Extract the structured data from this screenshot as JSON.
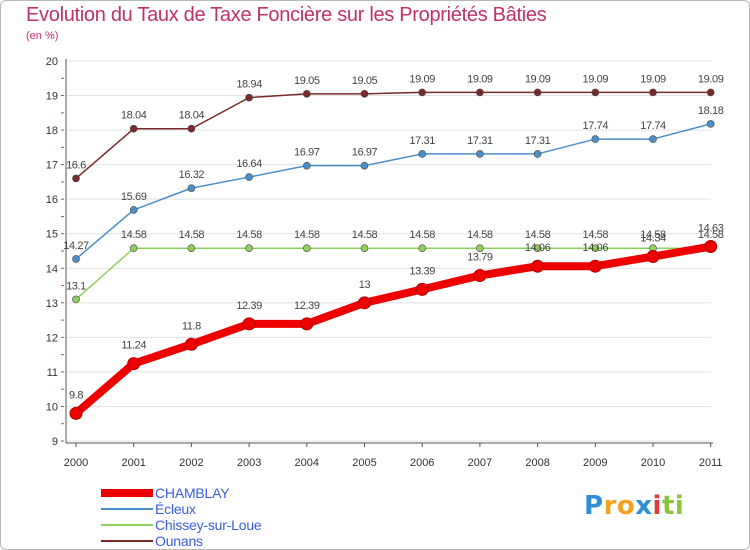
{
  "header": {
    "title": "Evolution du Taux de Taxe Foncière sur les Propriétés Bâties",
    "unit": "(en %)"
  },
  "chart_data": {
    "type": "line",
    "title": "Evolution du Taux de Taxe Foncière sur les Propriétés Bâties",
    "ylabel": "(en %)",
    "xlabel": "",
    "x": [
      "2000",
      "2001",
      "2002",
      "2003",
      "2004",
      "2005",
      "2006",
      "2007",
      "2008",
      "2009",
      "2010",
      "2011"
    ],
    "ylim": [
      9,
      20
    ],
    "yticks": [
      "9",
      "10",
      "11",
      "12",
      "13",
      "14",
      "15",
      "16",
      "17",
      "18",
      "19",
      "20"
    ],
    "series": [
      {
        "name": "Ounans",
        "color": "#7a2a2a",
        "values": [
          16.6,
          18.04,
          18.04,
          18.94,
          19.05,
          19.05,
          19.09,
          19.09,
          19.09,
          19.09,
          19.09,
          19.09
        ],
        "labels": [
          "16.6",
          "18.04",
          "18.04",
          "18.94",
          "19.05",
          "19.05",
          "19.09",
          "19.09",
          "19.09",
          "19.09",
          "19.09",
          "19.09"
        ]
      },
      {
        "name": "Écleux",
        "color": "#4a8fc9",
        "values": [
          14.27,
          15.69,
          16.32,
          16.64,
          16.97,
          16.97,
          17.31,
          17.31,
          17.31,
          17.74,
          17.74,
          18.18
        ],
        "labels": [
          "14.27",
          "15.69",
          "16.32",
          "16.64",
          "16.97",
          "16.97",
          "17.31",
          "17.31",
          "17.31",
          "17.74",
          "17.74",
          "18.18"
        ]
      },
      {
        "name": "Chissey-sur-Loue",
        "color": "#8ed05a",
        "values": [
          13.1,
          14.58,
          14.58,
          14.58,
          14.58,
          14.58,
          14.58,
          14.58,
          14.58,
          14.58,
          14.58,
          14.58
        ],
        "labels": [
          "13.1",
          "14.58",
          "14.58",
          "14.58",
          "14.58",
          "14.58",
          "14.58",
          "14.58",
          "14.58",
          "14.58",
          "14.58",
          "14.58"
        ]
      },
      {
        "name": "CHAMBLAY",
        "color": "#ee0000",
        "values": [
          9.8,
          11.24,
          11.8,
          12.39,
          12.39,
          13,
          13.39,
          13.79,
          14.06,
          14.06,
          14.34,
          14.63
        ],
        "labels": [
          "9.8",
          "11.24",
          "11.8",
          "12.39",
          "12.39",
          "13",
          "13.39",
          "13.79",
          "14.06",
          "14.06",
          "14.34",
          "14.63"
        ]
      }
    ],
    "legend": {
      "position": "bottom-left",
      "items": [
        {
          "name": "CHAMBLAY",
          "color": "#ee0000"
        },
        {
          "name": "Écleux",
          "color": "#4a8fc9"
        },
        {
          "name": "Chissey-sur-Loue",
          "color": "#8ed05a"
        },
        {
          "name": "Ounans",
          "color": "#7a2a2a"
        }
      ]
    }
  },
  "branding": {
    "letters": [
      "P",
      "r",
      "o",
      "x",
      "i",
      "t",
      "i"
    ],
    "colors": [
      "#2f8fd6",
      "#f2a21d",
      "#f2a21d",
      "#2f8fd6",
      "#e13a3a",
      "#8bc53f",
      "#8bc53f"
    ]
  }
}
